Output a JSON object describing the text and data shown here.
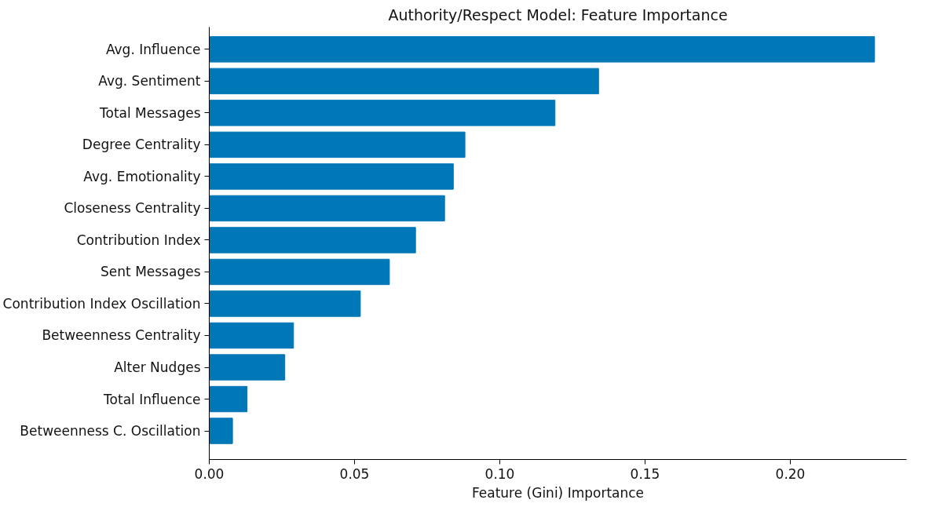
{
  "chart_data": {
    "type": "bar",
    "orientation": "horizontal",
    "title": "Authority/Respect Model: Feature Importance",
    "xlabel": "Feature (Gini) Importance",
    "categories": [
      "Avg. Influence",
      "Avg. Sentiment",
      "Total Messages",
      "Degree Centrality",
      "Avg. Emotionality",
      "Closeness Centrality",
      "Contribution Index",
      "Sent Messages",
      "Contribution Index Oscillation",
      "Betweenness Centrality",
      "Alter Nudges",
      "Total Influence",
      "Betweenness C. Oscillation"
    ],
    "values": [
      0.229,
      0.134,
      0.119,
      0.088,
      0.084,
      0.081,
      0.071,
      0.062,
      0.052,
      0.029,
      0.026,
      0.013,
      0.008
    ],
    "color": "#0077b6",
    "xlim": [
      0,
      0.24
    ],
    "xticks": [
      {
        "value": 0,
        "label": "0.00"
      },
      0.05,
      {
        "value": 0.1,
        "label": "0.10"
      },
      0.15,
      {
        "value": 0.2,
        "label": "0.20"
      }
    ],
    "grid": false
  }
}
